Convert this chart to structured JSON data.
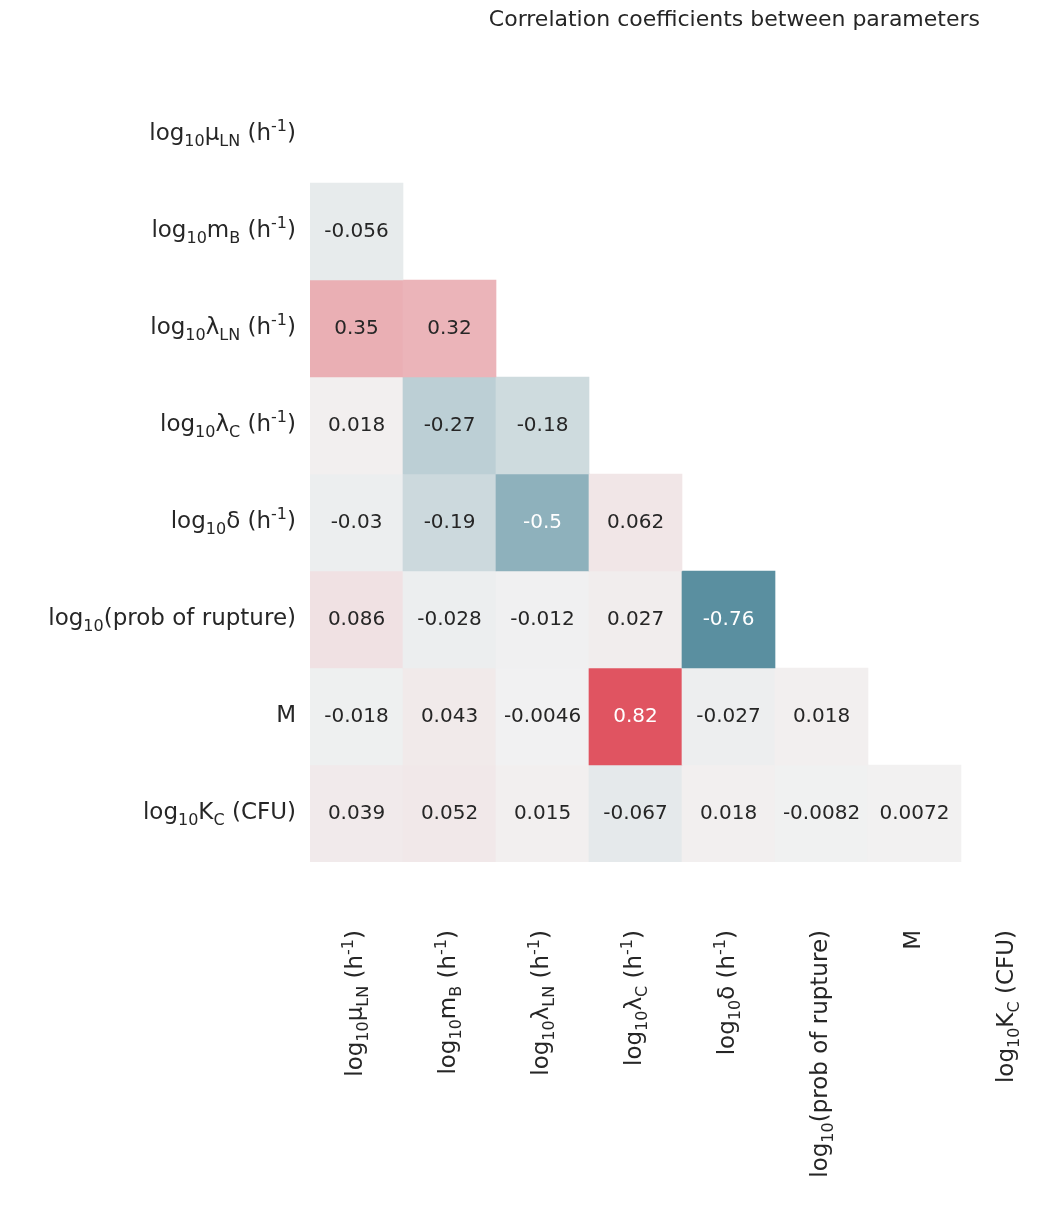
{
  "chart_data": {
    "type": "heatmap",
    "title": "Correlation coefficients between parameters",
    "categories": [
      "log$_{10}$μ$_{LN}$ (h$^{-1}$)",
      "log$_{10}$m$_{B}$ (h$^{-1}$)",
      "log$_{10}$λ$_{LN}$ (h$^{-1}$)",
      "log$_{10}$λ$_{C}$ (h$^{-1}$)",
      "log$_{10}$δ (h$^{-1}$)",
      "log$_{10}$(prob of rupture)",
      "M",
      "log$_{10}$K$_{C}$ (CFU)"
    ],
    "y_categories": [
      "log$_{10}$μ$_{LN}$ (h$^{-1}$)",
      "log$_{10}$m$_{B}$ (h$^{-1}$)",
      "log$_{10}$λ$_{LN}$ (h$^{-1}$)",
      "log$_{10}$λ$_{C}$ (h$^{-1}$)",
      "log$_{10}$δ (h$^{-1}$)",
      "log$_{10}$(prob of rupture)",
      "M",
      "log$_{10}$K$_{C}$ (CFU)"
    ],
    "cells": [
      [
        null,
        null,
        null,
        null,
        null,
        null,
        null,
        null
      ],
      [
        -0.056,
        null,
        null,
        null,
        null,
        null,
        null,
        null
      ],
      [
        0.35,
        0.32,
        null,
        null,
        null,
        null,
        null,
        null
      ],
      [
        0.018,
        -0.27,
        -0.18,
        null,
        null,
        null,
        null,
        null
      ],
      [
        -0.03,
        -0.19,
        -0.5,
        0.062,
        null,
        null,
        null,
        null
      ],
      [
        0.086,
        -0.028,
        -0.012,
        0.027,
        -0.76,
        null,
        null,
        null
      ],
      [
        -0.018,
        0.043,
        -0.0046,
        0.82,
        -0.027,
        0.018,
        null,
        null
      ],
      [
        0.039,
        0.052,
        0.015,
        -0.067,
        0.018,
        -0.0082,
        0.0072,
        null
      ]
    ],
    "data_labels": true
  }
}
